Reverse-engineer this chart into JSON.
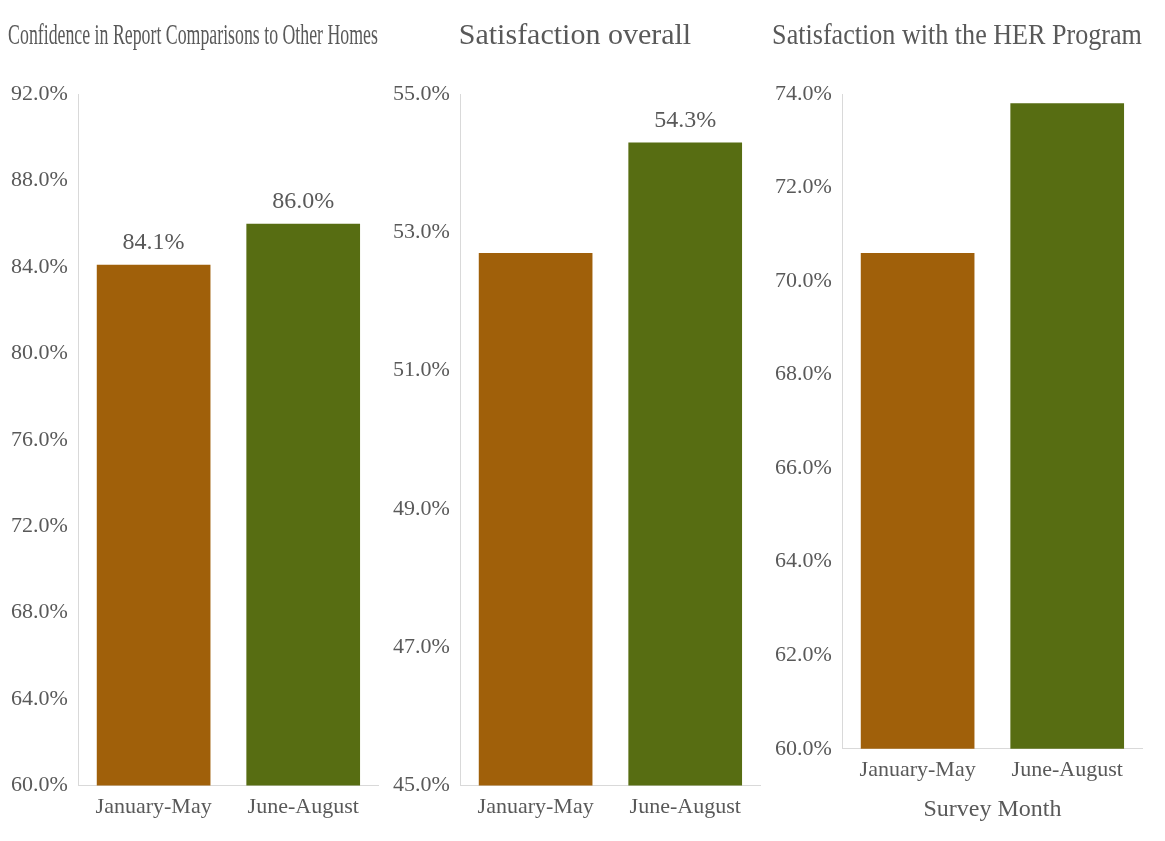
{
  "chart_data": [
    {
      "type": "bar",
      "title": "Confidence in Report Comparisons to Other Homes",
      "categories": [
        "January-May",
        "June-August"
      ],
      "values": [
        84.1,
        86.0
      ],
      "colors": [
        "#a0600a",
        "#576d12"
      ],
      "value_labels": [
        "84.1%",
        "86.0%"
      ],
      "ylim": [
        60,
        92
      ],
      "yticks": [
        {
          "value": 60,
          "label": "60.0%"
        },
        {
          "value": 64,
          "label": "64.0%"
        },
        {
          "value": 68,
          "label": "68.0%"
        },
        {
          "value": 72,
          "label": "72.0%"
        },
        {
          "value": 76,
          "label": "76.0%"
        },
        {
          "value": 80,
          "label": "80.0%"
        },
        {
          "value": 84,
          "label": "84.0%"
        },
        {
          "value": 88,
          "label": "88.0%"
        },
        {
          "value": 92,
          "label": "92.0%"
        }
      ],
      "grid": false,
      "legend": false
    },
    {
      "type": "bar",
      "title": "Satisfaction overall",
      "categories": [
        "January-May",
        "June-August"
      ],
      "values": [
        52.7,
        54.3
      ],
      "colors": [
        "#a0600a",
        "#576d12"
      ],
      "value_labels": [
        null,
        "54.3%"
      ],
      "ylim": [
        45,
        55
      ],
      "yticks": [
        {
          "value": 45,
          "label": "45.0%"
        },
        {
          "value": 47,
          "label": "47.0%"
        },
        {
          "value": 49,
          "label": "49.0%"
        },
        {
          "value": 51,
          "label": "51.0%"
        },
        {
          "value": 53,
          "label": "53.0%"
        },
        {
          "value": 55,
          "label": "55.0%"
        }
      ],
      "grid": false,
      "legend": false
    },
    {
      "type": "bar",
      "title": "Satisfaction with the HER Program",
      "xlabel": "Survey Month",
      "categories": [
        "January-May",
        "June-August"
      ],
      "values": [
        70.6,
        73.8
      ],
      "colors": [
        "#a0600a",
        "#576d12"
      ],
      "ylim": [
        60,
        74
      ],
      "yticks": [
        {
          "value": 60,
          "label": "60.0%"
        },
        {
          "value": 62,
          "label": "62.0%"
        },
        {
          "value": 64,
          "label": "64.0%"
        },
        {
          "value": 66,
          "label": "66.0%"
        },
        {
          "value": 68,
          "label": "68.0%"
        },
        {
          "value": 70,
          "label": "70.0%"
        },
        {
          "value": 72,
          "label": "72.0%"
        },
        {
          "value": 74,
          "label": "74.0%"
        }
      ],
      "grid": false,
      "legend": false
    }
  ]
}
